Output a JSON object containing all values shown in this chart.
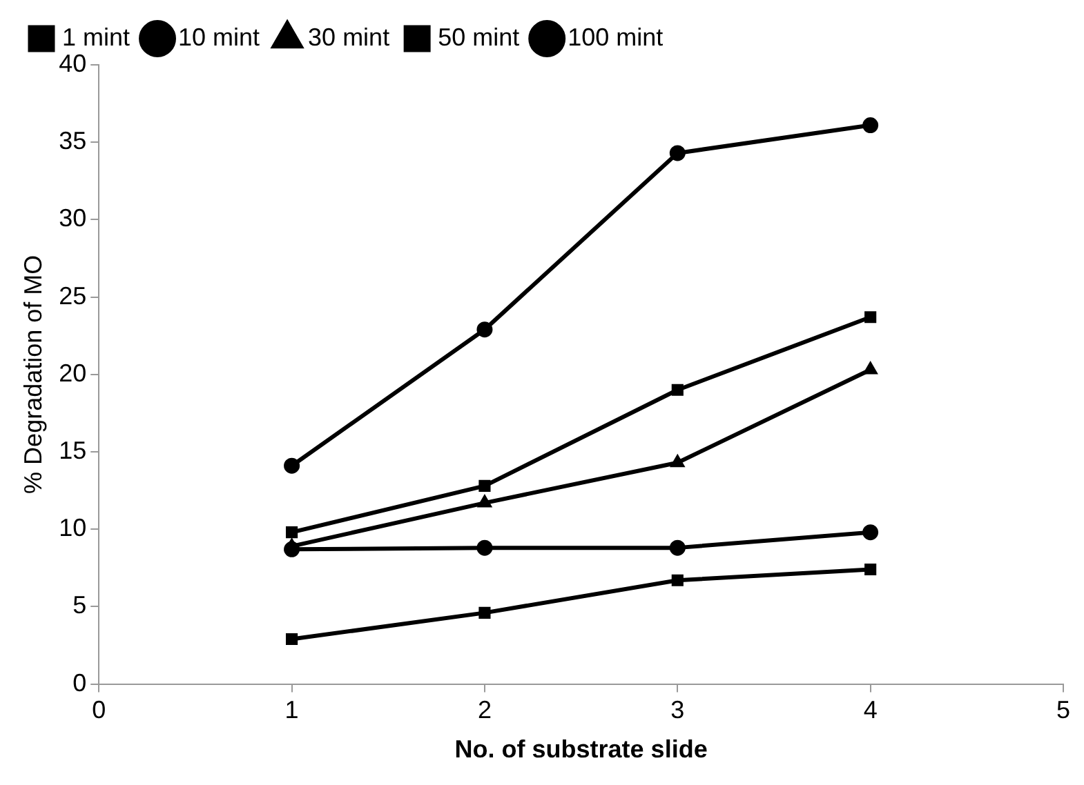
{
  "chart_data": {
    "type": "line",
    "xlabel": "No. of substrate slide",
    "ylabel": "% Degradation of MO",
    "x": [
      1,
      2,
      3,
      4
    ],
    "xlim": [
      0,
      5
    ],
    "xticks": [
      0,
      1,
      2,
      3,
      4,
      5
    ],
    "ylim": [
      0,
      40
    ],
    "yticks": [
      0,
      5,
      10,
      15,
      20,
      25,
      30,
      35,
      40
    ],
    "grid": false,
    "legend": "top",
    "line_style": "solid",
    "series": [
      {
        "name": "1 mint",
        "color": "#000000",
        "marker": "square",
        "values": [
          2.9,
          4.6,
          6.7,
          7.4
        ]
      },
      {
        "name": "10 mint",
        "color": "#000000",
        "marker": "circle",
        "values": [
          8.7,
          8.8,
          8.8,
          9.8
        ]
      },
      {
        "name": "30 mint",
        "color": "#000000",
        "marker": "triangle",
        "values": [
          8.9,
          11.7,
          14.3,
          20.3
        ]
      },
      {
        "name": "50 mint",
        "color": "#000000",
        "marker": "square",
        "values": [
          9.8,
          12.8,
          19.0,
          23.7
        ]
      },
      {
        "name": "100 mint",
        "color": "#000000",
        "marker": "circle",
        "values": [
          14.1,
          22.9,
          34.3,
          36.1
        ]
      }
    ]
  }
}
